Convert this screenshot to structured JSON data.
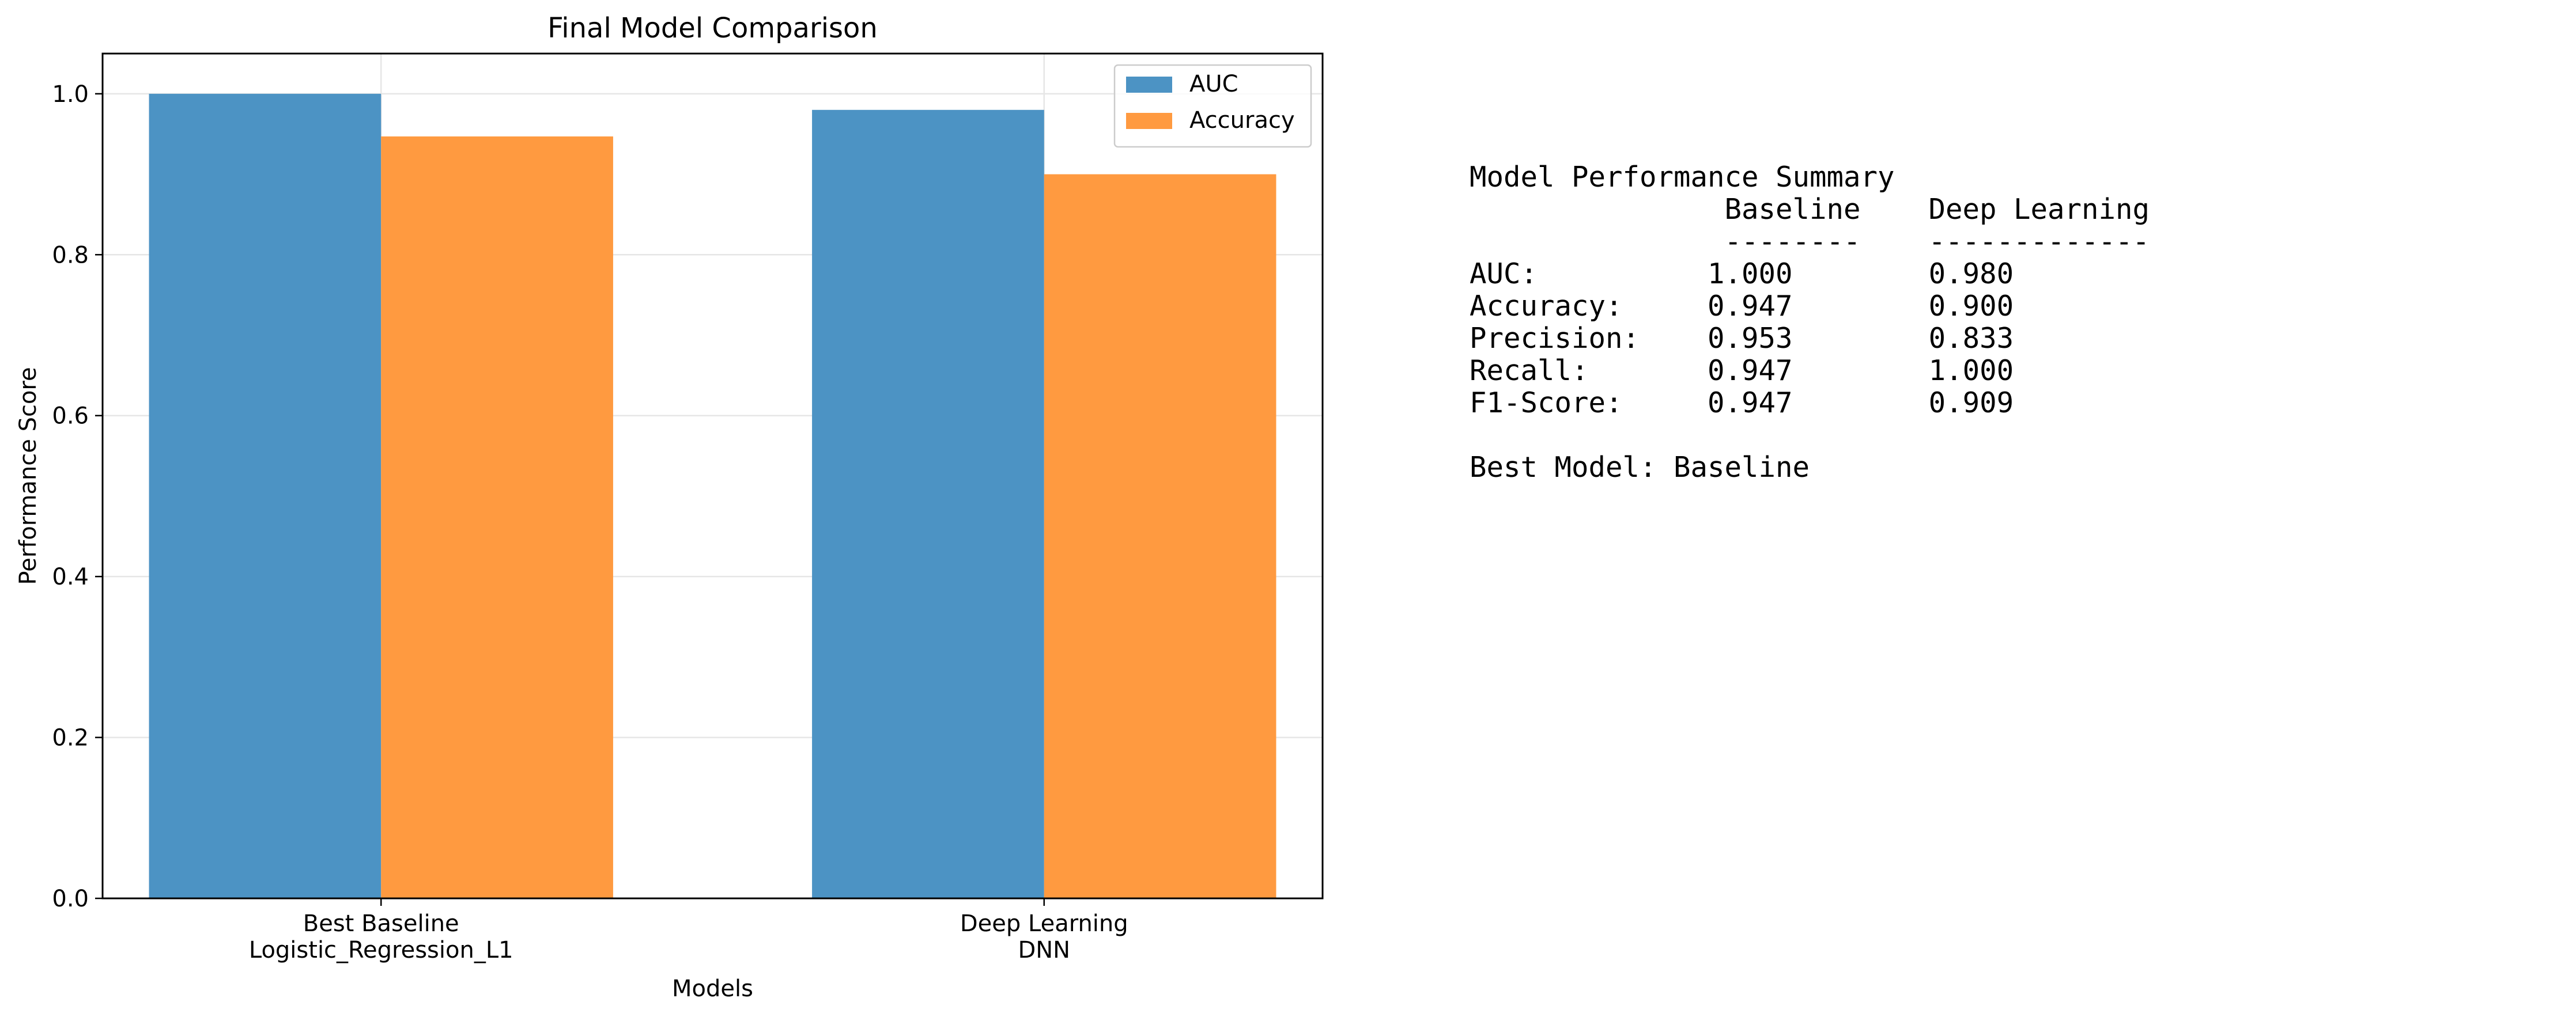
{
  "chart_data": {
    "type": "bar",
    "title": "Final Model Comparison",
    "xlabel": "Models",
    "ylabel": "Performance Score",
    "categories": [
      "Best Baseline\nLogistic_Regression_L1",
      "Deep Learning\nDNN"
    ],
    "series": [
      {
        "name": "AUC",
        "values": [
          1.0,
          0.98
        ],
        "color": "#4c93c4"
      },
      {
        "name": "Accuracy",
        "values": [
          0.947,
          0.9
        ],
        "color": "#ff9a40"
      }
    ],
    "ylim": [
      0,
      1.05
    ],
    "yticks": [
      0.0,
      0.2,
      0.4,
      0.6,
      0.8,
      1.0
    ],
    "ytick_labels": [
      "0.0",
      "0.2",
      "0.4",
      "0.6",
      "0.8",
      "1.0"
    ],
    "grid": true,
    "legend_position": "top-right"
  },
  "summary": {
    "title": "Model Performance Summary",
    "col_headers": [
      "Baseline",
      "Deep Learning"
    ],
    "col_rules": [
      "--------",
      "-------------"
    ],
    "rows": [
      {
        "label": "AUC:",
        "values": [
          "1.000",
          "0.980"
        ]
      },
      {
        "label": "Accuracy:",
        "values": [
          "0.947",
          "0.900"
        ]
      },
      {
        "label": "Precision:",
        "values": [
          "0.953",
          "0.833"
        ]
      },
      {
        "label": "Recall:",
        "values": [
          "0.947",
          "1.000"
        ]
      },
      {
        "label": "F1-Score:",
        "values": [
          "0.947",
          "0.909"
        ]
      }
    ],
    "best_model": "Best Model: Baseline"
  }
}
